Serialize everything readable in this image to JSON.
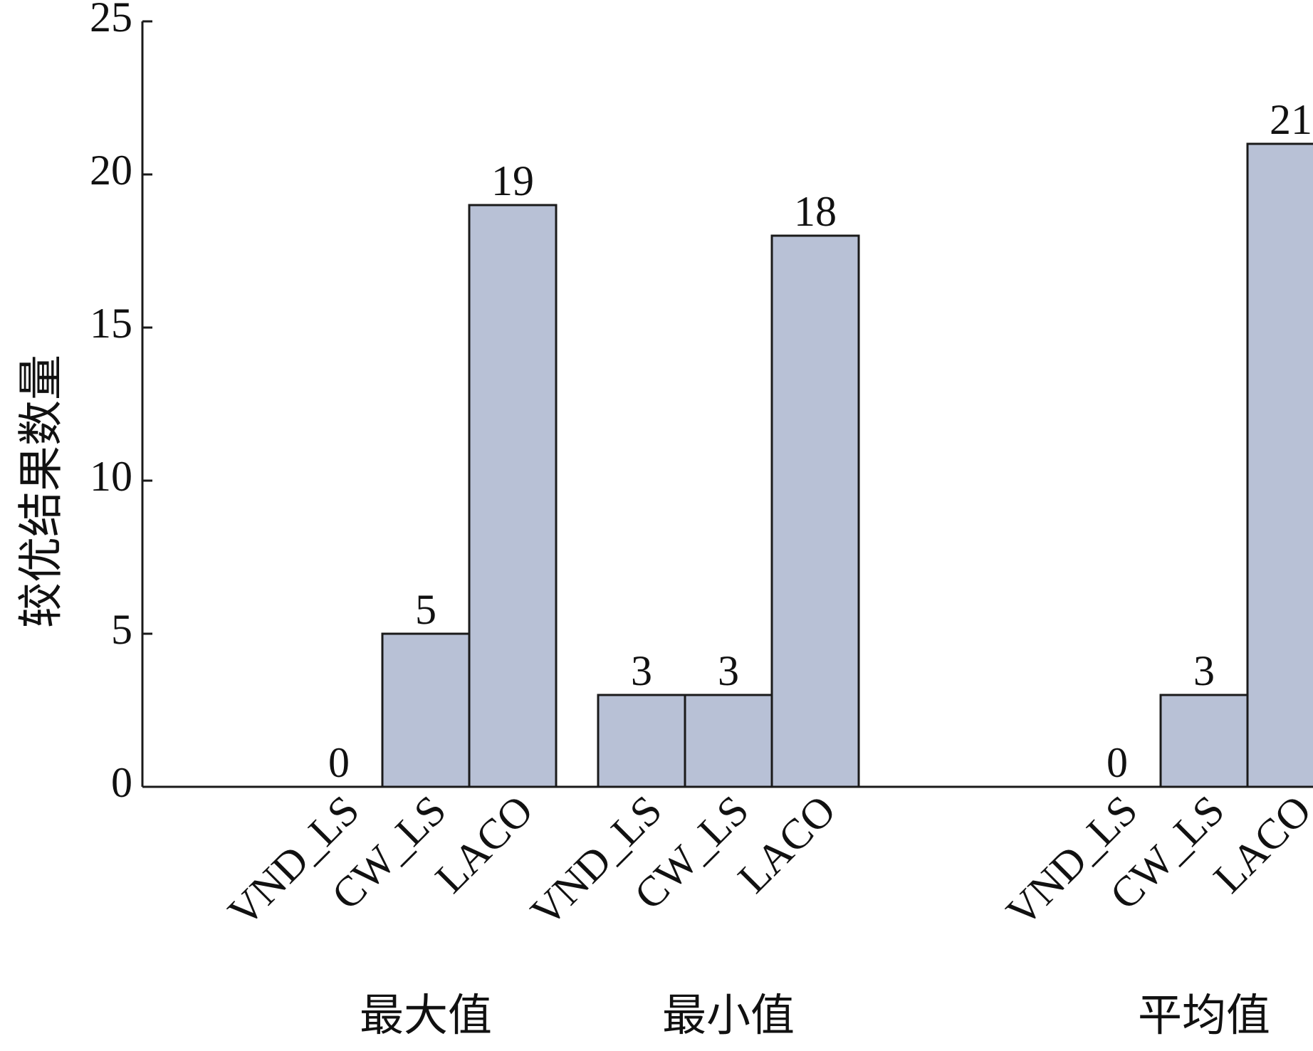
{
  "chart_data": {
    "type": "bar",
    "ylabel": "较优结果数量",
    "xlabel": "",
    "ylim": [
      0,
      25
    ],
    "yticks": [
      0,
      5,
      10,
      15,
      20,
      25
    ],
    "grid": false,
    "legend": "none",
    "bar_color": "#b8c1d6",
    "bar_edge_color": "#1a1a1a",
    "groups": [
      {
        "label": "最大值",
        "bars": [
          {
            "name": "VND_LS",
            "value": 0
          },
          {
            "name": "CW_LS",
            "value": 5
          },
          {
            "name": "LACO",
            "value": 19
          }
        ]
      },
      {
        "label": "最小值",
        "bars": [
          {
            "name": "VND_LS",
            "value": 3
          },
          {
            "name": "CW_LS",
            "value": 3
          },
          {
            "name": "LACO",
            "value": 18
          }
        ]
      },
      {
        "label": "平均值",
        "bars": [
          {
            "name": "VND_LS",
            "value": 0
          },
          {
            "name": "CW_LS",
            "value": 3
          },
          {
            "name": "LACO",
            "value": 21
          }
        ]
      }
    ]
  }
}
